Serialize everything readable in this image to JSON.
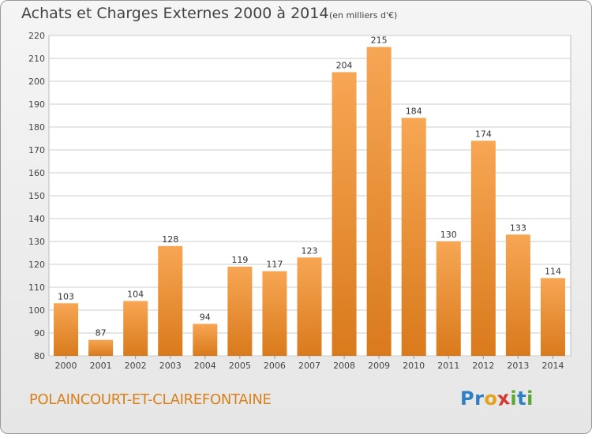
{
  "header": {
    "title": "Achats et Charges Externes 2000 à 2014",
    "subtitle": "(en milliers d'€)"
  },
  "footer": {
    "commune": "POLAINCOURT-ET-CLAIREFONTAINE",
    "logo_text": "Proxiti",
    "logo_letters": [
      {
        "ch": "P",
        "color": "#2f7fc4"
      },
      {
        "ch": "r",
        "color": "#2f7fc4"
      },
      {
        "ch": "o",
        "color": "#e3a21a"
      },
      {
        "ch": "x",
        "color": "#d63a2f"
      },
      {
        "ch": "i",
        "color": "#5aa832"
      },
      {
        "ch": "t",
        "color": "#2f7fc4"
      },
      {
        "ch": "i",
        "color": "#5aa832"
      }
    ]
  },
  "colors": {
    "bar_top": "#f7a654",
    "bar_bottom": "#d97a1c",
    "grid": "#cccccc",
    "commune": "#d8801a"
  },
  "chart_data": {
    "type": "bar",
    "title": "Achats et Charges Externes 2000 à 2014",
    "subtitle": "(en milliers d'€)",
    "categories": [
      "2000",
      "2001",
      "2002",
      "2003",
      "2004",
      "2005",
      "2006",
      "2007",
      "2008",
      "2009",
      "2010",
      "2011",
      "2012",
      "2013",
      "2014"
    ],
    "values": [
      103,
      87,
      104,
      128,
      94,
      119,
      117,
      123,
      204,
      215,
      184,
      130,
      174,
      133,
      114
    ],
    "ylim": [
      80,
      220
    ],
    "yticks": [
      80,
      90,
      100,
      110,
      120,
      130,
      140,
      150,
      160,
      170,
      180,
      190,
      200,
      210,
      220
    ],
    "grid": true,
    "data_labels": true
  }
}
